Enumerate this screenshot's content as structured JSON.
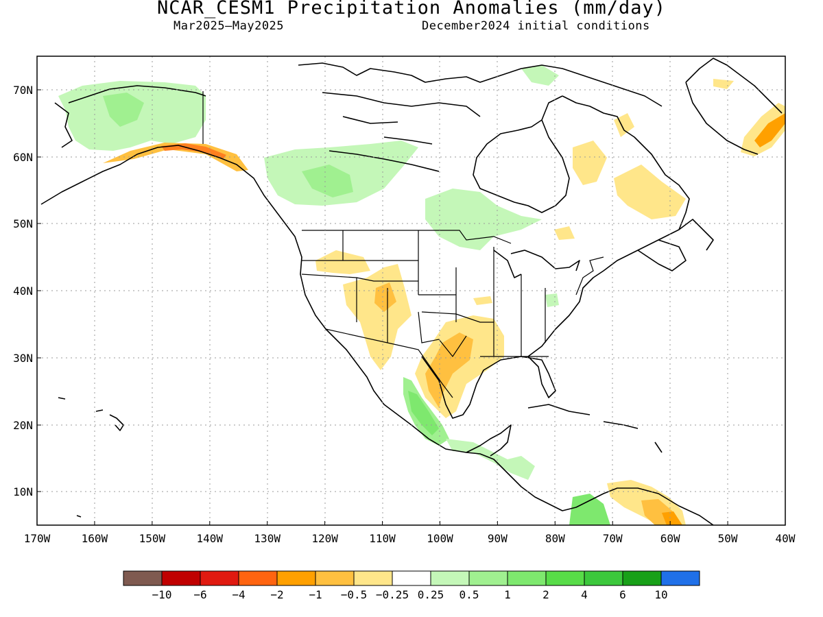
{
  "title": "NCAR_CESM1 Precipitation Anomalies (mm/day)",
  "subtitle_left": "Mar2025–May2025",
  "subtitle_right": "December2024 initial conditions",
  "lat_labels": [
    "70N",
    "60N",
    "50N",
    "40N",
    "30N",
    "20N",
    "10N"
  ],
  "lon_labels": [
    "170W",
    "160W",
    "150W",
    "140W",
    "130W",
    "120W",
    "110W",
    "100W",
    "90W",
    "80W",
    "70W",
    "60W",
    "50W",
    "40W"
  ],
  "legend": {
    "colors": [
      "#7f5a50",
      "#c00000",
      "#e01a10",
      "#ff6410",
      "#ffa000",
      "#ffc040",
      "#ffe68a",
      "#ffffff",
      "#c4f7b8",
      "#a0f090",
      "#7ee86e",
      "#58dc48",
      "#3cc83c",
      "#18a018",
      "#2070e8"
    ],
    "labels": [
      "−10",
      "−6",
      "−4",
      "−2",
      "−1",
      "−0.5",
      "−0.25",
      "0.25",
      "0.5",
      "1",
      "2",
      "4",
      "6",
      "10"
    ]
  }
}
